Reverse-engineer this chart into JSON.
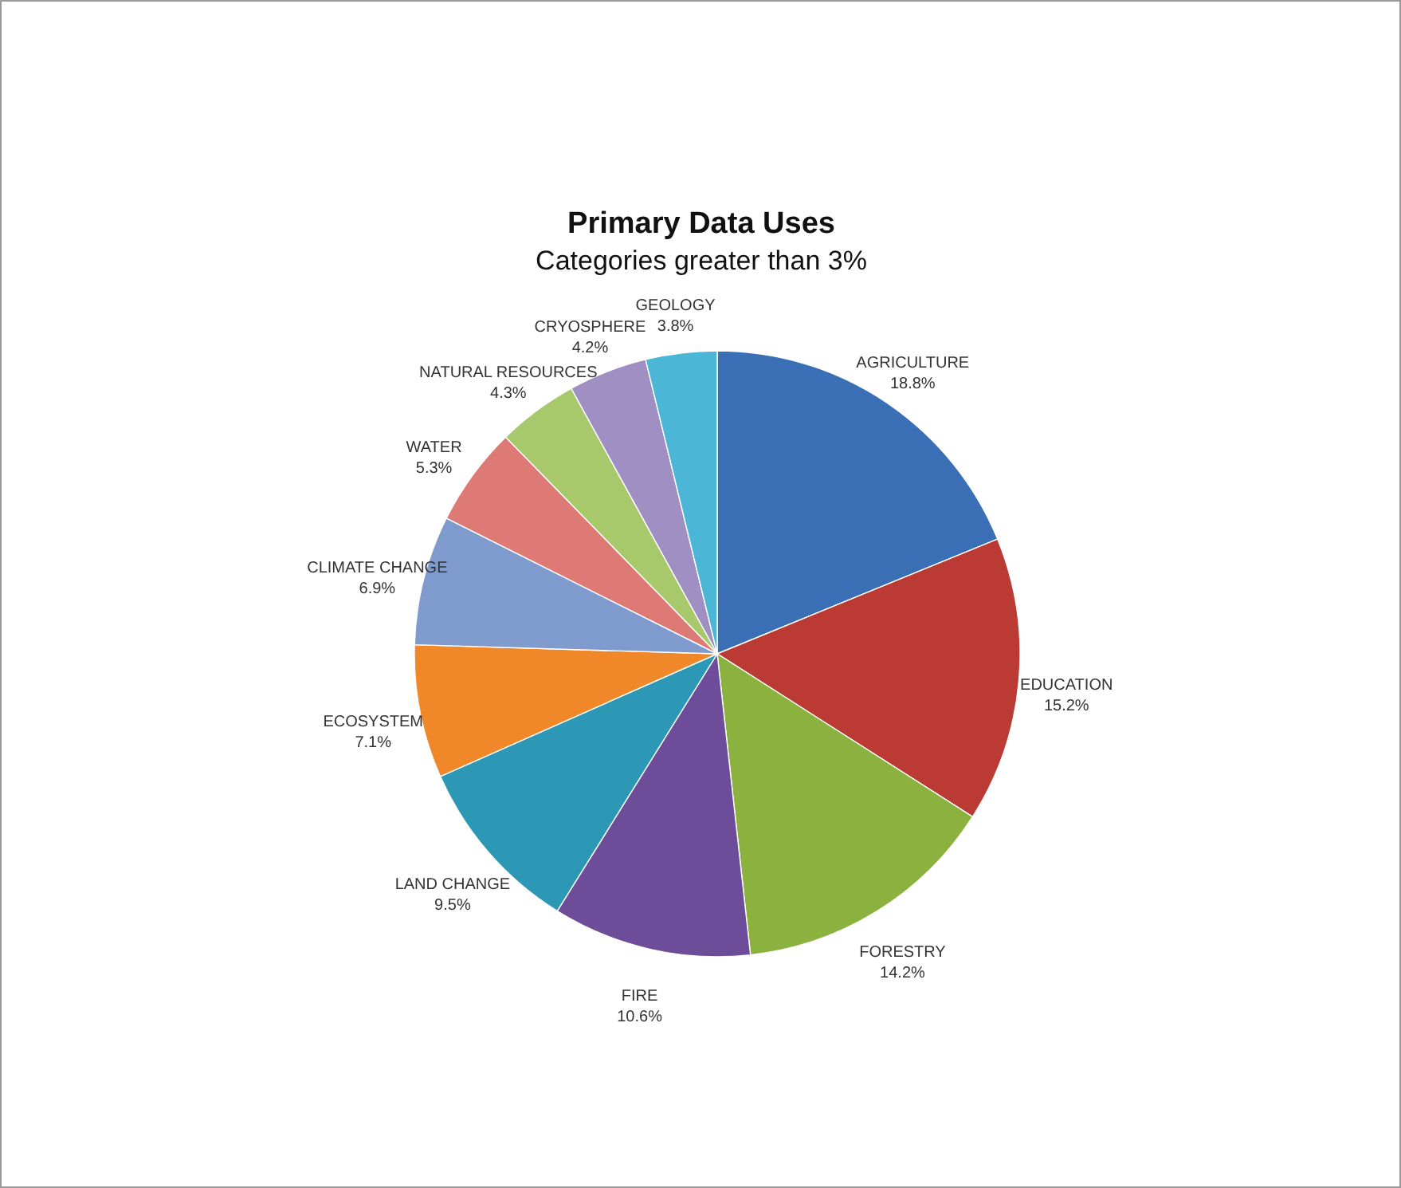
{
  "chart_data": {
    "type": "pie",
    "title": "Primary Data Uses",
    "subtitle": "Categories greater than 3%",
    "categories": [
      "AGRICULTURE",
      "EDUCATION",
      "FORESTRY",
      "FIRE",
      "LAND CHANGE",
      "ECOSYSTEM",
      "CLIMATE CHANGE",
      "WATER",
      "NATURAL RESOURCES",
      "CRYOSPHERE",
      "GEOLOGY"
    ],
    "values": [
      18.8,
      15.2,
      14.2,
      10.6,
      9.5,
      7.1,
      6.9,
      5.3,
      4.3,
      4.2,
      3.8
    ],
    "value_labels": [
      "18.8%",
      "15.2%",
      "14.2%",
      "10.6%",
      "9.5%",
      "7.1%",
      "6.9%",
      "5.3%",
      "4.3%",
      "4.2%",
      "3.8%"
    ],
    "colors": [
      "#3a6fb5",
      "#bb3b34",
      "#8bb13f",
      "#6d4c9a",
      "#2c98b6",
      "#f0882a",
      "#7f9bcd",
      "#dd7a75",
      "#a8c86c",
      "#a08fc2",
      "#4cb6d6"
    ]
  }
}
